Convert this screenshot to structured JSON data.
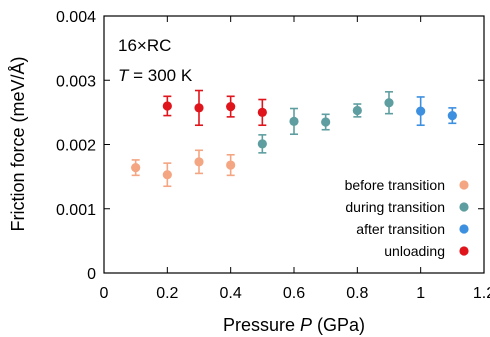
{
  "chart_data": {
    "type": "scatter",
    "xlabel_prefix": "Pressure ",
    "xlabel_var": "P",
    "xlabel_suffix": " (GPa)",
    "ylabel": "Friction force (meV/Å)",
    "xlim": [
      0,
      1.2
    ],
    "ylim": [
      0,
      0.004
    ],
    "xticks": [
      0,
      0.2,
      0.4,
      0.6,
      0.8,
      1,
      1.2
    ],
    "xtick_labels": [
      "0",
      "0.2",
      "0.4",
      "0.6",
      "0.8",
      "1",
      "1.2"
    ],
    "yticks": [
      0,
      0.001,
      0.002,
      0.003,
      0.004
    ],
    "ytick_labels": [
      "0",
      "0.001",
      "0.002",
      "0.003",
      "0.004"
    ],
    "annotation_line1": "16×RC",
    "annotation_line2_var": "T",
    "annotation_line2_rest": " = 300 K",
    "legend_position": "bottom-right",
    "series": [
      {
        "name": "before transition",
        "color": "#f4a582",
        "points": [
          {
            "x": 0.1,
            "y": 0.00164,
            "err": 0.00012
          },
          {
            "x": 0.2,
            "y": 0.00153,
            "err": 0.00018
          },
          {
            "x": 0.3,
            "y": 0.00173,
            "err": 0.00018
          },
          {
            "x": 0.4,
            "y": 0.00168,
            "err": 0.00016
          }
        ]
      },
      {
        "name": "during transition",
        "color": "#5f9ea0",
        "points": [
          {
            "x": 0.5,
            "y": 0.00201,
            "err": 0.00014
          },
          {
            "x": 0.6,
            "y": 0.00236,
            "err": 0.0002
          },
          {
            "x": 0.7,
            "y": 0.00235,
            "err": 0.00012
          },
          {
            "x": 0.8,
            "y": 0.00253,
            "err": 0.0001
          },
          {
            "x": 0.9,
            "y": 0.00265,
            "err": 0.00017
          }
        ]
      },
      {
        "name": "after transition",
        "color": "#3d8fe0",
        "points": [
          {
            "x": 1.0,
            "y": 0.00252,
            "err": 0.00022
          },
          {
            "x": 1.1,
            "y": 0.00245,
            "err": 0.00012
          }
        ]
      },
      {
        "name": "unloading",
        "color": "#e0151b",
        "points": [
          {
            "x": 0.2,
            "y": 0.0026,
            "err": 0.00015
          },
          {
            "x": 0.3,
            "y": 0.00257,
            "err": 0.00027
          },
          {
            "x": 0.4,
            "y": 0.00259,
            "err": 0.00016
          },
          {
            "x": 0.5,
            "y": 0.0025,
            "err": 0.0002
          }
        ]
      }
    ]
  }
}
